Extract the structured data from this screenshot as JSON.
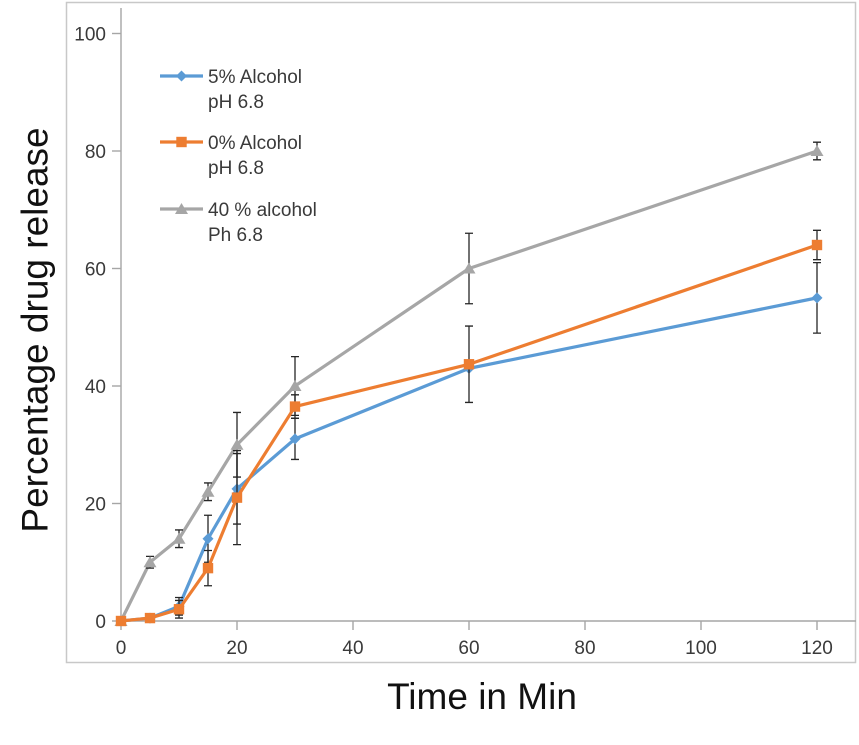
{
  "figure": {
    "background": "#FFFFFF",
    "border_color": "#C8C8C8"
  },
  "chart_data": {
    "type": "line",
    "title": "",
    "xlabel": "Time in Min",
    "ylabel": "Percentage drug release",
    "xlim": [
      0,
      120
    ],
    "ylim": [
      0,
      100
    ],
    "x_ticks": [
      0,
      20,
      40,
      60,
      80,
      100,
      120
    ],
    "y_ticks": [
      0,
      20,
      40,
      60,
      80,
      100
    ],
    "x": [
      0,
      5,
      10,
      15,
      20,
      30,
      60,
      120
    ],
    "grid": false,
    "legend_position": "upper-left-inside",
    "axis_color": "#A6A6A6",
    "tick_label_color": "#3A3A3A",
    "error_bar_color": "#262626",
    "draw_order": [
      2,
      0,
      1
    ],
    "series": [
      {
        "name": "5% Alcohol pH 6.8",
        "legend_lines": [
          "5% Alcohol",
          "pH 6.8"
        ],
        "color": "#5B9BD5",
        "marker": "diamond",
        "values": [
          0,
          0.5,
          2.5,
          14,
          22.5,
          31,
          43,
          55
        ],
        "error": [
          0,
          0,
          1.5,
          4,
          6,
          3.5,
          0,
          6
        ]
      },
      {
        "name": "0% Alcohol pH 6.8",
        "legend_lines": [
          "0% Alcohol",
          "pH 6.8"
        ],
        "color": "#ED7D31",
        "marker": "square",
        "values": [
          0,
          0.5,
          2,
          9,
          21,
          36.5,
          43.7,
          64
        ],
        "error": [
          0,
          0.5,
          1.5,
          3,
          8,
          2,
          6.5,
          2.5
        ]
      },
      {
        "name": "40 % alcohol Ph 6.8",
        "legend_lines": [
          "40 % alcohol",
          "Ph 6.8"
        ],
        "color": "#A6A6A6",
        "marker": "triangle",
        "values": [
          0,
          10,
          14,
          22,
          30,
          40,
          60,
          80
        ],
        "error": [
          0,
          1,
          1.5,
          1.5,
          5.5,
          5,
          6,
          1.5
        ]
      }
    ]
  }
}
